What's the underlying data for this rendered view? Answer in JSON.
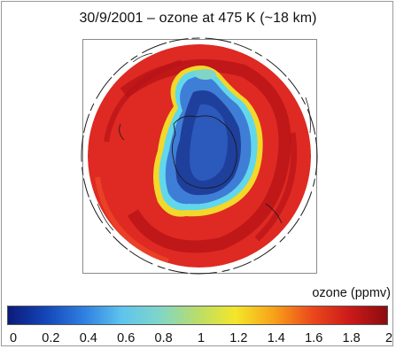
{
  "title": "30/9/2001 – ozone at 475 K (~18 km)",
  "colorbar": {
    "label": "ozone (ppmv)",
    "range": [
      0,
      2
    ],
    "ticks": [
      "0",
      "0.2",
      "0.4",
      "0.6",
      "0.8",
      "1",
      "1.2",
      "1.4",
      "1.6",
      "1.8",
      "2"
    ],
    "colors": [
      "#0b1a7a",
      "#1446b8",
      "#2f7fe0",
      "#5ec4ee",
      "#7fd6c8",
      "#b9dd6a",
      "#f4e62a",
      "#f7a319",
      "#ec4a1c",
      "#cc1a1a",
      "#8c0c10"
    ]
  },
  "map": {
    "projection": "polar stereographic, South Pole",
    "background_ozone": "red (~1.8 ppmv)",
    "ozone_hole_ozone": "blue (~0.2–0.6 ppmv)",
    "colors": {
      "outer": "#de2a22",
      "ring": "#b81318",
      "edge_yellow": "#f2d82a",
      "edge_cyan": "#62d7ec",
      "mid_blue": "#3f7ed6",
      "deep_blue": "#1f3f9c",
      "core_blue": "#2f60c4",
      "coast": "#1b1b1b"
    }
  }
}
